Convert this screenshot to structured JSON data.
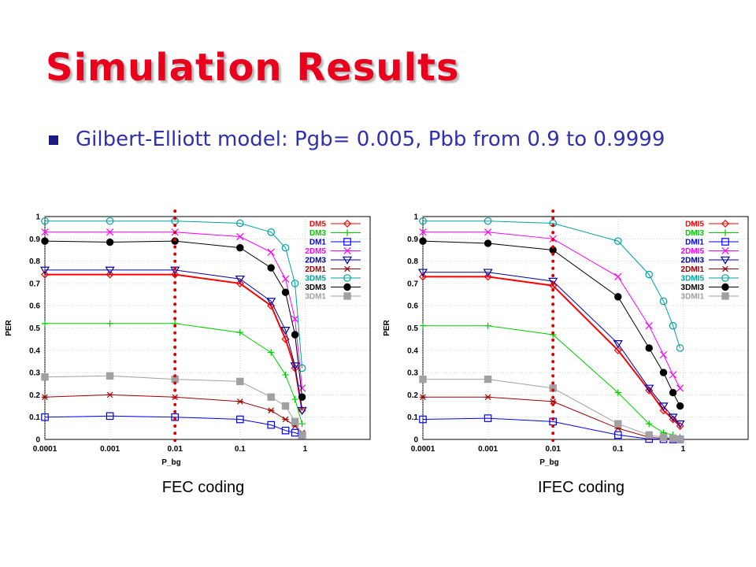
{
  "slide": {
    "title": "Simulation Results",
    "bullet": "Gilbert-Elliott model: Pgb= 0.005, Pbb from 0.9 to 0.9999"
  },
  "colors": {
    "title": "#e8001c",
    "bullet_text": "#2f2fb0",
    "marker_line": "#e00000"
  },
  "chart_data": [
    {
      "type": "line",
      "caption": "FEC coding",
      "xlabel": "P_bg",
      "ylabel": "PER",
      "x_scale": "log",
      "xlim": [
        0.0001,
        10
      ],
      "ylim": [
        0,
        1
      ],
      "x_ticks": [
        "0.0001",
        "0.001",
        "0.01",
        "0.1",
        "1"
      ],
      "y_ticks": [
        "0",
        "0.1",
        "0.2",
        "0.3",
        "0.4",
        "0.5",
        "0.6",
        "0.7",
        "0.8",
        "0.9",
        "1"
      ],
      "grid": true,
      "legend_position": "top-right",
      "vertical_marker_x": 0.01,
      "x": [
        0.0001,
        0.001,
        0.01,
        0.1,
        0.3,
        0.5,
        0.7,
        0.9
      ],
      "series": [
        {
          "name": "DM5",
          "color": "#ff0000",
          "marker": "diamond",
          "values": [
            0.74,
            0.74,
            0.74,
            0.7,
            0.6,
            0.45,
            0.32,
            0.13
          ]
        },
        {
          "name": "DM3",
          "color": "#00cc00",
          "marker": "plus",
          "values": [
            0.52,
            0.52,
            0.52,
            0.48,
            0.39,
            0.29,
            0.18,
            0.07
          ]
        },
        {
          "name": "DM1",
          "color": "#0000ff",
          "marker": "square",
          "values": [
            0.1,
            0.105,
            0.1,
            0.09,
            0.065,
            0.04,
            0.03,
            0.02
          ]
        },
        {
          "name": "2DM5",
          "color": "#ff00ff",
          "marker": "x",
          "values": [
            0.93,
            0.93,
            0.93,
            0.91,
            0.84,
            0.72,
            0.54,
            0.23
          ]
        },
        {
          "name": "2DM3",
          "color": "#0000a0",
          "marker": "triangle-down",
          "values": [
            0.76,
            0.76,
            0.76,
            0.72,
            0.62,
            0.49,
            0.33,
            0.13
          ]
        },
        {
          "name": "2DM1",
          "color": "#a00000",
          "marker": "star",
          "values": [
            0.19,
            0.2,
            0.19,
            0.17,
            0.13,
            0.09,
            0.06,
            0.03
          ]
        },
        {
          "name": "3DM5",
          "color": "#00a0a0",
          "marker": "circle",
          "values": [
            0.98,
            0.98,
            0.98,
            0.97,
            0.93,
            0.86,
            0.7,
            0.32
          ]
        },
        {
          "name": "3DM3",
          "color": "#000000",
          "marker": "filled-circle",
          "values": [
            0.89,
            0.885,
            0.89,
            0.86,
            0.77,
            0.66,
            0.47,
            0.19
          ]
        },
        {
          "name": "3DM1",
          "color": "#a0a0a0",
          "marker": "filled-square",
          "values": [
            0.28,
            0.285,
            0.27,
            0.26,
            0.19,
            0.15,
            0.08,
            0.02
          ]
        }
      ]
    },
    {
      "type": "line",
      "caption": "IFEC coding",
      "xlabel": "P_bg",
      "ylabel": "PER",
      "x_scale": "log",
      "xlim": [
        0.0001,
        10
      ],
      "ylim": [
        0,
        1
      ],
      "x_ticks": [
        "0.0001",
        "0.001",
        "0.01",
        "0.1",
        "1"
      ],
      "y_ticks": [
        "0",
        "0.1",
        "0.2",
        "0.3",
        "0.4",
        "0.5",
        "0.6",
        "0.7",
        "0.8",
        "0.9",
        "1"
      ],
      "grid": true,
      "legend_position": "top-right",
      "vertical_marker_x": 0.01,
      "x": [
        0.0001,
        0.001,
        0.01,
        0.1,
        0.3,
        0.5,
        0.7,
        0.9
      ],
      "series": [
        {
          "name": "DMI5",
          "color": "#ff0000",
          "marker": "diamond",
          "values": [
            0.73,
            0.73,
            0.69,
            0.4,
            0.22,
            0.13,
            0.09,
            0.06
          ]
        },
        {
          "name": "DMI3",
          "color": "#00cc00",
          "marker": "plus",
          "values": [
            0.51,
            0.51,
            0.47,
            0.21,
            0.07,
            0.03,
            0.02,
            0.01
          ]
        },
        {
          "name": "DMI1",
          "color": "#0000ff",
          "marker": "square",
          "values": [
            0.09,
            0.095,
            0.08,
            0.02,
            0.002,
            0.001,
            0.0,
            0.0
          ]
        },
        {
          "name": "2DMI5",
          "color": "#ff00ff",
          "marker": "x",
          "values": [
            0.93,
            0.93,
            0.9,
            0.73,
            0.51,
            0.38,
            0.29,
            0.23
          ]
        },
        {
          "name": "2DMI3",
          "color": "#0000a0",
          "marker": "triangle-down",
          "values": [
            0.75,
            0.75,
            0.71,
            0.43,
            0.23,
            0.15,
            0.1,
            0.07
          ]
        },
        {
          "name": "2DMI1",
          "color": "#a00000",
          "marker": "star",
          "values": [
            0.19,
            0.19,
            0.17,
            0.05,
            0.01,
            0.005,
            0.002,
            0.0
          ]
        },
        {
          "name": "3DMI5",
          "color": "#00a0a0",
          "marker": "circle",
          "values": [
            0.98,
            0.98,
            0.97,
            0.89,
            0.74,
            0.62,
            0.51,
            0.41
          ]
        },
        {
          "name": "3DMI3",
          "color": "#000000",
          "marker": "filled-circle",
          "values": [
            0.89,
            0.88,
            0.85,
            0.64,
            0.41,
            0.3,
            0.21,
            0.15
          ]
        },
        {
          "name": "3DMI1",
          "color": "#a0a0a0",
          "marker": "filled-square",
          "values": [
            0.27,
            0.27,
            0.23,
            0.07,
            0.02,
            0.01,
            0.005,
            0.0
          ]
        }
      ]
    }
  ]
}
